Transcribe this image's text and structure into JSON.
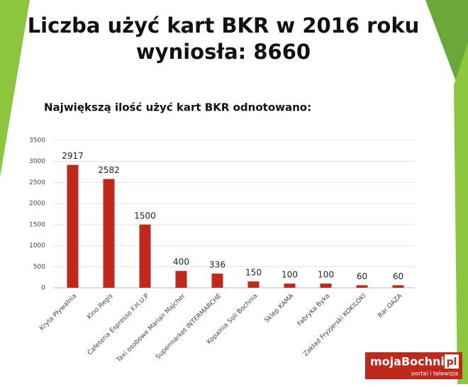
{
  "chart_data": {
    "type": "bar",
    "title": [
      "Liczba użyć kart BKR w 2016 roku",
      "wyniosła: 8660"
    ],
    "subtitle": "Największą ilość użyć kart BKR odnotowano:",
    "categories": [
      "Kryta Pływalnia",
      "Kino Regis",
      "Cafeteria Espresso F.H.U.P",
      "Taxi osobowe Marian Majcher",
      "Supermarket INTERMARCHE",
      "Kopalnia Soli Bochnia",
      "Sklep KAMA",
      "Fabryka Byka",
      "Zakład Fryzjerski KOKILOKI",
      "Bar OAZA"
    ],
    "values": [
      2917,
      2582,
      1500,
      400,
      336,
      150,
      100,
      100,
      60,
      60
    ],
    "color": "#c0281c",
    "ylim": [
      0,
      3500
    ],
    "yticks": [
      0,
      500,
      1000,
      1500,
      2000,
      2500,
      3000,
      3500
    ],
    "grid": true
  },
  "logo": {
    "name": "mojaBochnia",
    "domain": "pl",
    "tagline": "portal i telewizja"
  }
}
